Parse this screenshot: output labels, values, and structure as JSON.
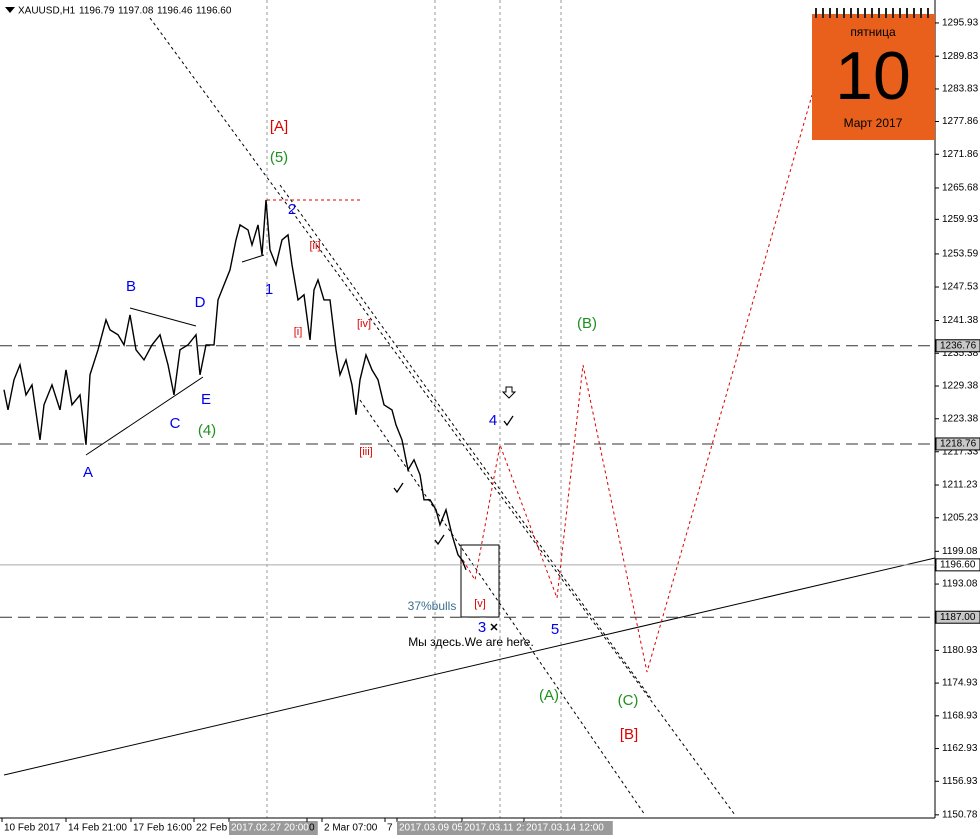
{
  "chart_data": {
    "type": "line",
    "title": "XAUUSD,H1",
    "quote": [
      "1196.79",
      "1197.08",
      "1196.46",
      "1196.60"
    ],
    "color": "#000000",
    "series": [
      {
        "color": "#000000",
        "x": [
          4,
          8,
          14,
          20,
          26,
          32,
          40,
          44,
          52,
          60,
          66,
          72,
          80,
          86,
          90,
          98,
          106,
          110,
          118,
          124,
          130,
          136,
          144,
          152,
          160,
          168,
          174,
          180,
          188,
          196,
          200,
          206,
          214,
          218,
          224,
          230,
          236,
          240,
          248,
          252,
          258,
          262,
          266,
          270,
          276,
          282,
          288,
          292,
          298,
          304,
          310,
          314,
          318,
          324,
          330,
          336,
          340,
          346,
          352,
          356,
          360,
          366,
          372,
          378,
          384,
          392,
          396,
          402,
          408,
          414,
          420,
          424,
          430,
          436,
          440,
          446,
          452,
          458,
          462,
          466
        ],
        "values": [
          1228.68,
          1225.01,
          1230.51,
          1233.26,
          1227.76,
          1229.59,
          1219.51,
          1225.93,
          1229.59,
          1225.01,
          1232.34,
          1225.93,
          1227.76,
          1218.6,
          1231.43,
          1236.01,
          1241.5,
          1239.67,
          1238.76,
          1236.92,
          1242.42,
          1236.01,
          1234.17,
          1236.92,
          1238.76,
          1233.26,
          1227.76,
          1236.01,
          1236.92,
          1238.76,
          1231.43,
          1236.92,
          1236.92,
          1245.17,
          1247.92,
          1250.67,
          1256.16,
          1258.91,
          1258.0,
          1255.25,
          1258.91,
          1253.42,
          1263.49,
          1254.33,
          1251.58,
          1256.16,
          1257.08,
          1251.58,
          1245.17,
          1246.09,
          1237.84,
          1247.0,
          1248.83,
          1245.17,
          1245.17,
          1236.01,
          1231.43,
          1234.17,
          1229.59,
          1224.1,
          1230.51,
          1235.09,
          1232.34,
          1230.51,
          1225.93,
          1225.01,
          1222.26,
          1219.51,
          1214.02,
          1215.85,
          1213.1,
          1208.52,
          1208.52,
          1206.69,
          1203.94,
          1206.69,
          1202.11,
          1198.44,
          1197.52,
          1195.69
        ]
      }
    ],
    "xlim": [
      0,
      935
    ],
    "ylim": [
      1150.2,
      1299.4
    ],
    "yticks": [
      1295.93,
      1289.83,
      1283.83,
      1277.86,
      1271.86,
      1265.68,
      1259.93,
      1253.59,
      1247.53,
      1241.38,
      1235.38,
      1229.38,
      1223.38,
      1217.33,
      1211.23,
      1205.23,
      1199.08,
      1193.08,
      1180.93,
      1174.93,
      1168.93,
      1162.93,
      1156.93,
      1150.78
    ],
    "xticks": [
      {
        "value": 2,
        "label": "10 Feb 2017"
      },
      {
        "value": 66,
        "label": "14 Feb 21:00"
      },
      {
        "value": 131,
        "label": "17 Feb 16:00"
      },
      {
        "value": 194,
        "label": "22 Feb"
      },
      {
        "value": 229,
        "label": "2017.02.27 20:00"
      },
      {
        "value": 307,
        "label": "0"
      },
      {
        "value": 322,
        "label": "2 Mar 07:00"
      },
      {
        "value": 385,
        "label": "7"
      },
      {
        "value": 397,
        "label": "2017.03.09 05:"
      },
      {
        "value": 462,
        "label": "2017.03.11 2:"
      },
      {
        "value": 524,
        "label": "2017.03.14 12:00"
      }
    ],
    "xtick_highlight": [
      false,
      false,
      false,
      false,
      true,
      false,
      false,
      false,
      true,
      true,
      true
    ],
    "levels": [
      1236.76,
      1218.76,
      {
        "value": 1196.6,
        "label": "1196.60"
      },
      {
        "value": 1187,
        "label": "1187.00"
      }
    ],
    "level_styles": [
      "dashed",
      "dashed",
      "solid",
      "dashed"
    ],
    "annotations": [
      {
        "text": "[A]",
        "color": "#e00000"
      },
      {
        "text": "(5)",
        "color": "#1f8f1f"
      },
      {
        "text": "2",
        "color": "#0000ee"
      },
      {
        "text": "[ii]",
        "color": "#e00000"
      },
      {
        "text": "1",
        "color": "#0000ee"
      },
      {
        "text": "[i]",
        "color": "#e00000"
      },
      {
        "text": "[iv]",
        "color": "#e00000"
      },
      {
        "text": "B",
        "color": "#0000ee"
      },
      {
        "text": "D",
        "color": "#0000ee"
      },
      {
        "text": "C",
        "color": "#0000ee"
      },
      {
        "text": "E",
        "color": "#0000ee"
      },
      {
        "text": "(4)",
        "color": "#1f8f1f"
      },
      {
        "text": "A",
        "color": "#0000ee"
      },
      {
        "text": "[iii]",
        "color": "#e00000"
      },
      {
        "text": "4",
        "color": "#0000ee"
      },
      {
        "text": "(B)",
        "color": "#1f8f1f"
      },
      {
        "text": "[v]",
        "color": "#e00000"
      },
      {
        "text": "3",
        "color": "#0000ee"
      },
      {
        "text": "5",
        "color": "#0000ee"
      },
      {
        "text": "37%bulls",
        "color": "#3a6e8f"
      },
      {
        "text": "Мы здесь.We are here.",
        "color": "#000000"
      },
      {
        "text": "(A)",
        "color": "#1f8f1f"
      },
      {
        "text": "(C)",
        "color": "#1f8f1f"
      },
      {
        "text": "[B]",
        "color": "#e00000"
      }
    ],
    "calendar": {
      "weekday": "пятница",
      "day": "10",
      "month": "Март 2017"
    }
  }
}
